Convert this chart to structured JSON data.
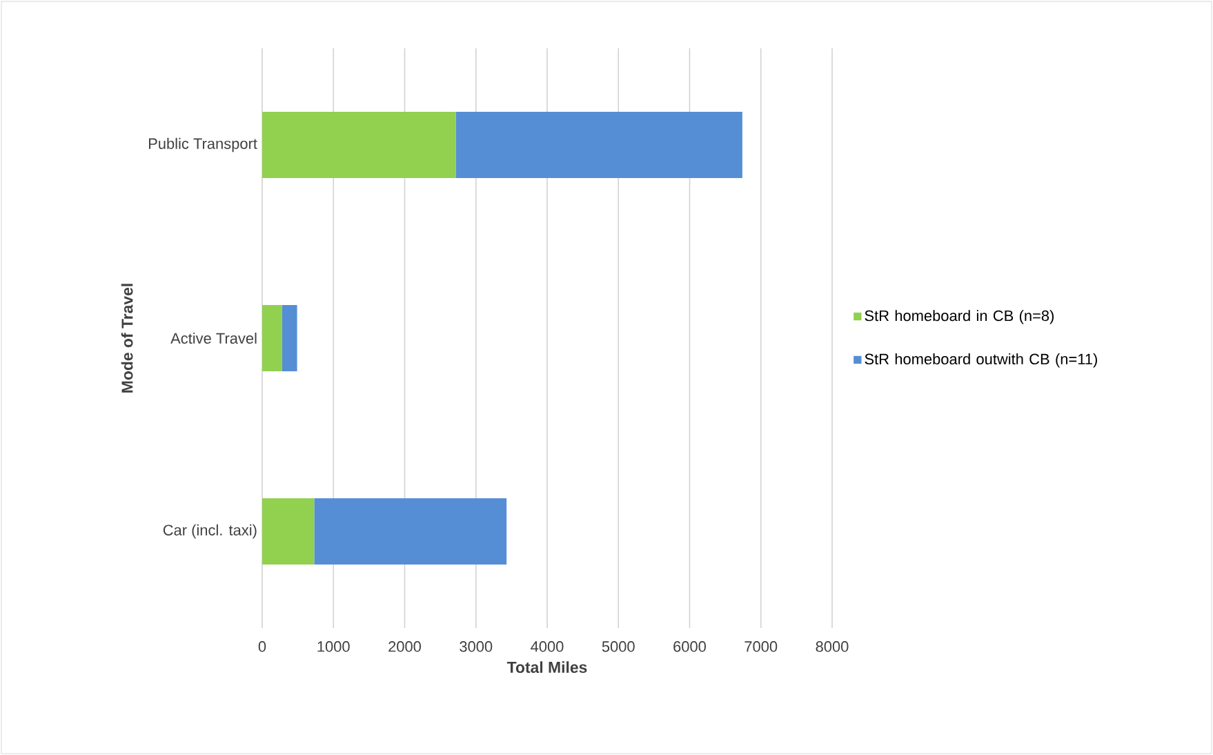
{
  "chart_data": {
    "type": "bar",
    "orientation": "horizontal",
    "stacked": true,
    "categories": [
      "Public Transport",
      "Active Travel",
      "Car (incl. taxi)"
    ],
    "series": [
      {
        "name": "StR homeboard in CB (n=8)",
        "color": "#92d050",
        "values": [
          2720,
          280,
          730
        ]
      },
      {
        "name": "StR homeboard outwith CB (n=11)",
        "color": "#558ed5",
        "values": [
          4020,
          210,
          2700
        ]
      }
    ],
    "xlim": [
      0,
      8000
    ],
    "xticks": [
      0,
      1000,
      2000,
      3000,
      4000,
      5000,
      6000,
      7000,
      8000
    ],
    "xlabel": "Total Miles",
    "ylabel": "Mode of Travel",
    "grid": "x",
    "legend": "right"
  }
}
